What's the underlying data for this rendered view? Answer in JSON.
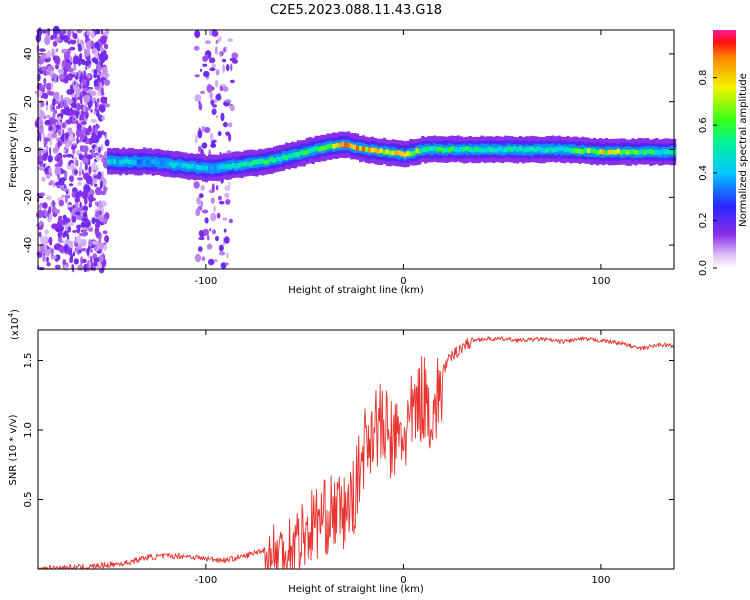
{
  "page_title": "C2E5.2023.088.11.43.G18",
  "chart_data": [
    {
      "type": "heatmap",
      "xlabel": "Height of straight line (km)",
      "ylabel": "Frequency (Hz)",
      "xlim": [
        -185,
        137
      ],
      "ylim": [
        -50,
        50
      ],
      "xticks": [
        -100,
        0,
        100
      ],
      "yticks": [
        -40,
        -20,
        0,
        20,
        40
      ],
      "colorbar": {
        "label": "Normalized spectral amplitude",
        "range": [
          0.0,
          1.0
        ],
        "ticks": [
          0.0,
          0.2,
          0.4,
          0.6,
          0.8
        ],
        "tick_labels": [
          "0.0",
          "0.2",
          "0.4",
          "0.6",
          "0.8"
        ],
        "colormap": "rainbow (white → purple → blue → cyan → green → yellow → orange → red → magenta)"
      },
      "ridge": {
        "x": [
          -150,
          -140,
          -130,
          -120,
          -110,
          -100,
          -90,
          -80,
          -70,
          -60,
          -50,
          -40,
          -30,
          -20,
          -10,
          0,
          10,
          20,
          40,
          60,
          80,
          100,
          120,
          137
        ],
        "freq": [
          -5,
          -5,
          -5,
          -6,
          -7,
          -8,
          -7,
          -6,
          -5,
          -3,
          -1,
          1,
          2,
          0,
          -1,
          -2,
          0,
          0,
          0,
          0,
          0,
          -1,
          -1,
          -1
        ],
        "amplitude": [
          0.45,
          0.4,
          0.35,
          0.4,
          0.45,
          0.4,
          0.45,
          0.5,
          0.55,
          0.5,
          0.55,
          0.6,
          0.9,
          0.85,
          0.7,
          0.8,
          0.55,
          0.55,
          0.5,
          0.5,
          0.5,
          0.75,
          0.55,
          0.5
        ]
      },
      "noise_regions_x": [
        [
          -185,
          -150
        ],
        [
          -105,
          -85
        ]
      ],
      "grid": false
    },
    {
      "type": "line",
      "xlabel": "Height of straight line (km)",
      "ylabel": "SNR (10 * v/v)",
      "y_scale_label": "(x10",
      "y_scale_exponent": "4",
      "xlim": [
        -185,
        137
      ],
      "ylim": [
        0,
        1.72
      ],
      "xticks": [
        -100,
        0,
        100
      ],
      "yticks": [
        0.5,
        1.0,
        1.5
      ],
      "ytick_labels": [
        "0.5",
        "1.0",
        "1.5"
      ],
      "color": "#e8322d",
      "series": [
        {
          "x": [
            -185,
            -160,
            -140,
            -130,
            -120,
            -110,
            -100,
            -90,
            -80,
            -70,
            -60,
            -55,
            -50,
            -45,
            -40,
            -35,
            -30,
            -25,
            -20,
            -15,
            -10,
            -5,
            0,
            5,
            10,
            15,
            20,
            25,
            30,
            35,
            40,
            50,
            60,
            70,
            80,
            90,
            100,
            110,
            120,
            130,
            137
          ],
          "y": [
            0.01,
            0.02,
            0.05,
            0.09,
            0.1,
            0.1,
            0.08,
            0.07,
            0.1,
            0.15,
            0.2,
            0.28,
            0.33,
            0.42,
            0.45,
            0.5,
            0.48,
            0.6,
            0.95,
            1.15,
            1.1,
            1.0,
            1.05,
            1.2,
            1.35,
            1.2,
            1.45,
            1.55,
            1.62,
            1.65,
            1.66,
            1.66,
            1.65,
            1.66,
            1.64,
            1.66,
            1.65,
            1.63,
            1.59,
            1.62,
            1.61
          ]
        }
      ],
      "grid": false
    }
  ]
}
